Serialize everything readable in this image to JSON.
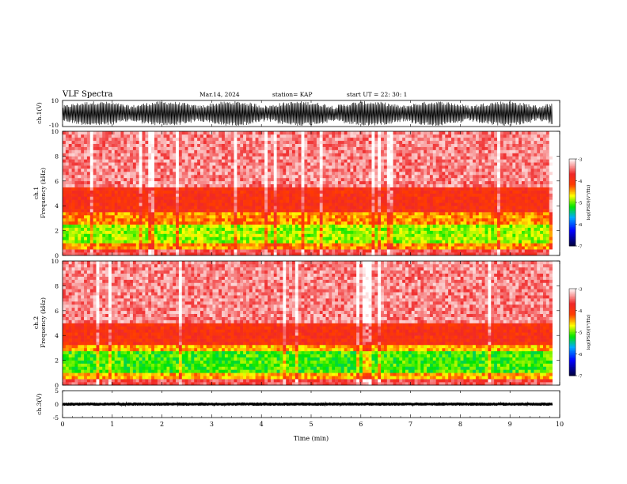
{
  "header": {
    "title": "VLF Spectra",
    "date": "Mar.14, 2024",
    "station": "station= KAP",
    "start": "start  UT  =   22: 30: 1"
  },
  "chart_data": [
    {
      "type": "line",
      "panel": "channel-1-waveform",
      "ylabel": "ch.1(V)",
      "ylim": [
        -10,
        10
      ],
      "yticks": [
        10,
        -10
      ],
      "xlim": [
        0,
        10
      ],
      "series": [
        {
          "values_note_free": true,
          "envelope_upper": 9.5,
          "envelope_lower": -9.5,
          "duration_min": 9.85
        }
      ]
    },
    {
      "type": "heatmap",
      "panel": "channel-1-spectrogram",
      "ylabel": "ch.1\nFrequency (kHz)",
      "ylabel_line1": "ch.1",
      "ylabel_line2": "Frequency (kHz)",
      "ylim": [
        0,
        10
      ],
      "yticks": [
        0,
        2,
        4,
        6,
        8,
        10
      ],
      "xlim": [
        0,
        10
      ],
      "duration_min": 9.85,
      "bands": [
        {
          "f_low": 0.0,
          "f_high": 0.5,
          "level": -3.6
        },
        {
          "f_low": 0.5,
          "f_high": 1.0,
          "level": -4.4
        },
        {
          "f_low": 1.0,
          "f_high": 2.6,
          "level": -4.9
        },
        {
          "f_low": 2.6,
          "f_high": 3.4,
          "level": -4.4
        },
        {
          "f_low": 3.4,
          "f_high": 5.5,
          "level": -3.95
        },
        {
          "f_low": 5.5,
          "f_high": 10.0,
          "level": -3.4
        }
      ],
      "colorbar": {
        "label": "log(PSD)(V²/Hz)",
        "min": -7,
        "max": -3,
        "ticks": [
          -3,
          -4,
          -5,
          -6,
          -7
        ]
      }
    },
    {
      "type": "heatmap",
      "panel": "channel-2-spectrogram",
      "ylabel": "ch.2\nFrequency (kHz)",
      "ylabel_line1": "ch.2",
      "ylabel_line2": "Frequency (kHz)",
      "ylim": [
        0,
        10
      ],
      "yticks": [
        0,
        2,
        4,
        6,
        8,
        10
      ],
      "xlim": [
        0,
        10
      ],
      "duration_min": 9.85,
      "bands": [
        {
          "f_low": 0.0,
          "f_high": 0.5,
          "level": -3.6
        },
        {
          "f_low": 0.5,
          "f_high": 1.0,
          "level": -4.5
        },
        {
          "f_low": 1.0,
          "f_high": 2.8,
          "level": -5.1
        },
        {
          "f_low": 2.8,
          "f_high": 3.3,
          "level": -4.5
        },
        {
          "f_low": 3.3,
          "f_high": 5.0,
          "level": -3.95
        },
        {
          "f_low": 5.0,
          "f_high": 10.0,
          "level": -3.4
        }
      ],
      "colorbar": {
        "label": "log(PSD)(V²/Hz)",
        "min": -7,
        "max": -3,
        "ticks": [
          -3,
          -4,
          -5,
          -6,
          -7
        ]
      }
    },
    {
      "type": "line",
      "panel": "channel-3-waveform",
      "ylabel": "ch.3(V)",
      "ylim": [
        -5,
        5
      ],
      "yticks": [
        5,
        0,
        -5
      ],
      "xlim": [
        0,
        10
      ],
      "xticks": [
        0,
        1,
        2,
        3,
        4,
        5,
        6,
        7,
        8,
        9,
        10
      ],
      "xlabel": "Time (min)",
      "series": [
        {
          "center": 0.0,
          "amplitude": 0.6,
          "duration_min": 9.85
        }
      ]
    }
  ],
  "colors": {
    "ink": "#000000",
    "colormap": [
      "#000050",
      "#0000ff",
      "#00a0ff",
      "#00ff00",
      "#ffff00",
      "#ff0000",
      "#ffffff"
    ]
  }
}
